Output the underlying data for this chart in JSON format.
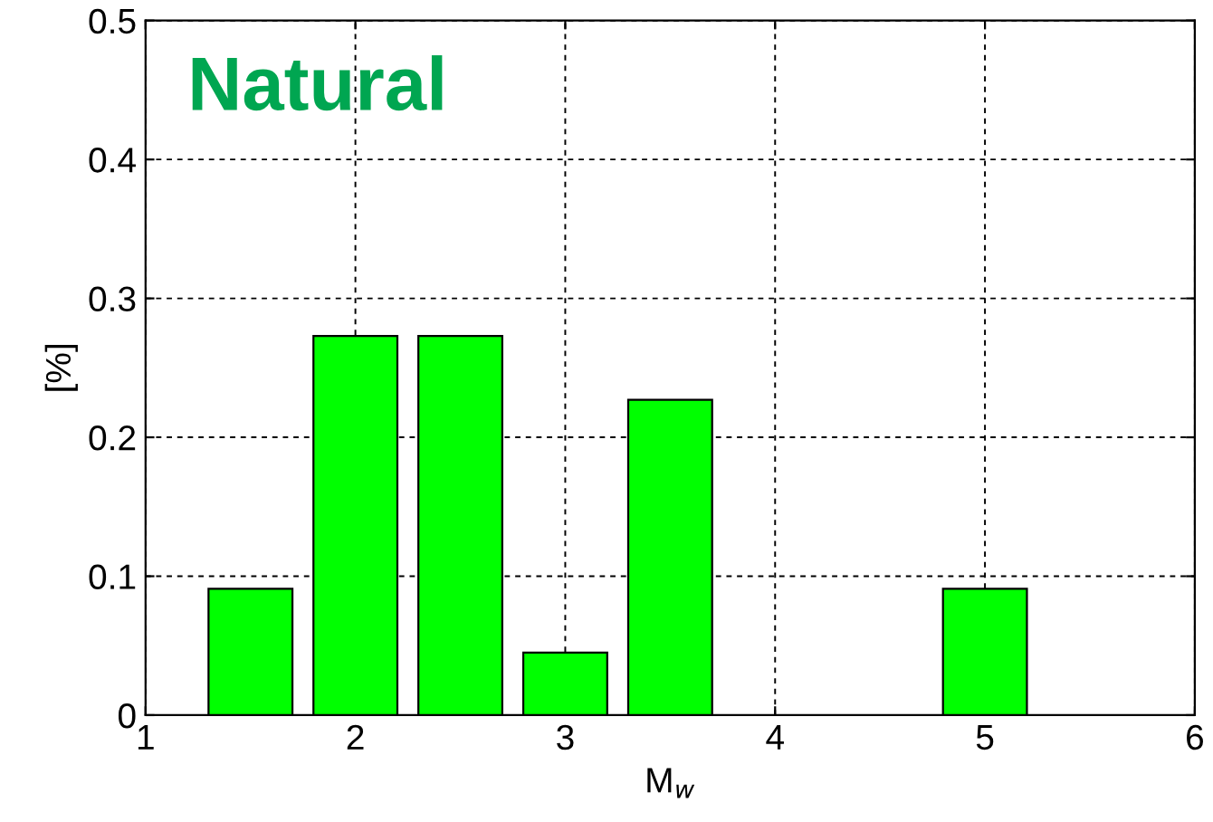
{
  "chart_data": {
    "type": "bar",
    "title": "Natural",
    "xlabel": "M$_{w}$",
    "ylabel": "[%]",
    "x": [
      1.5,
      2.0,
      2.5,
      3.0,
      3.5,
      5.0
    ],
    "values": [
      0.091,
      0.273,
      0.273,
      0.045,
      0.227,
      0.091
    ],
    "color": "#00ff00",
    "xlim": [
      1,
      6
    ],
    "xticks": [
      1,
      2,
      3,
      4,
      5,
      6
    ],
    "ylim": [
      0,
      0.5
    ],
    "yticks": [
      0,
      0.1,
      0.2,
      0.3,
      0.4,
      0.5
    ],
    "grid": true,
    "line_style": "dashed"
  }
}
